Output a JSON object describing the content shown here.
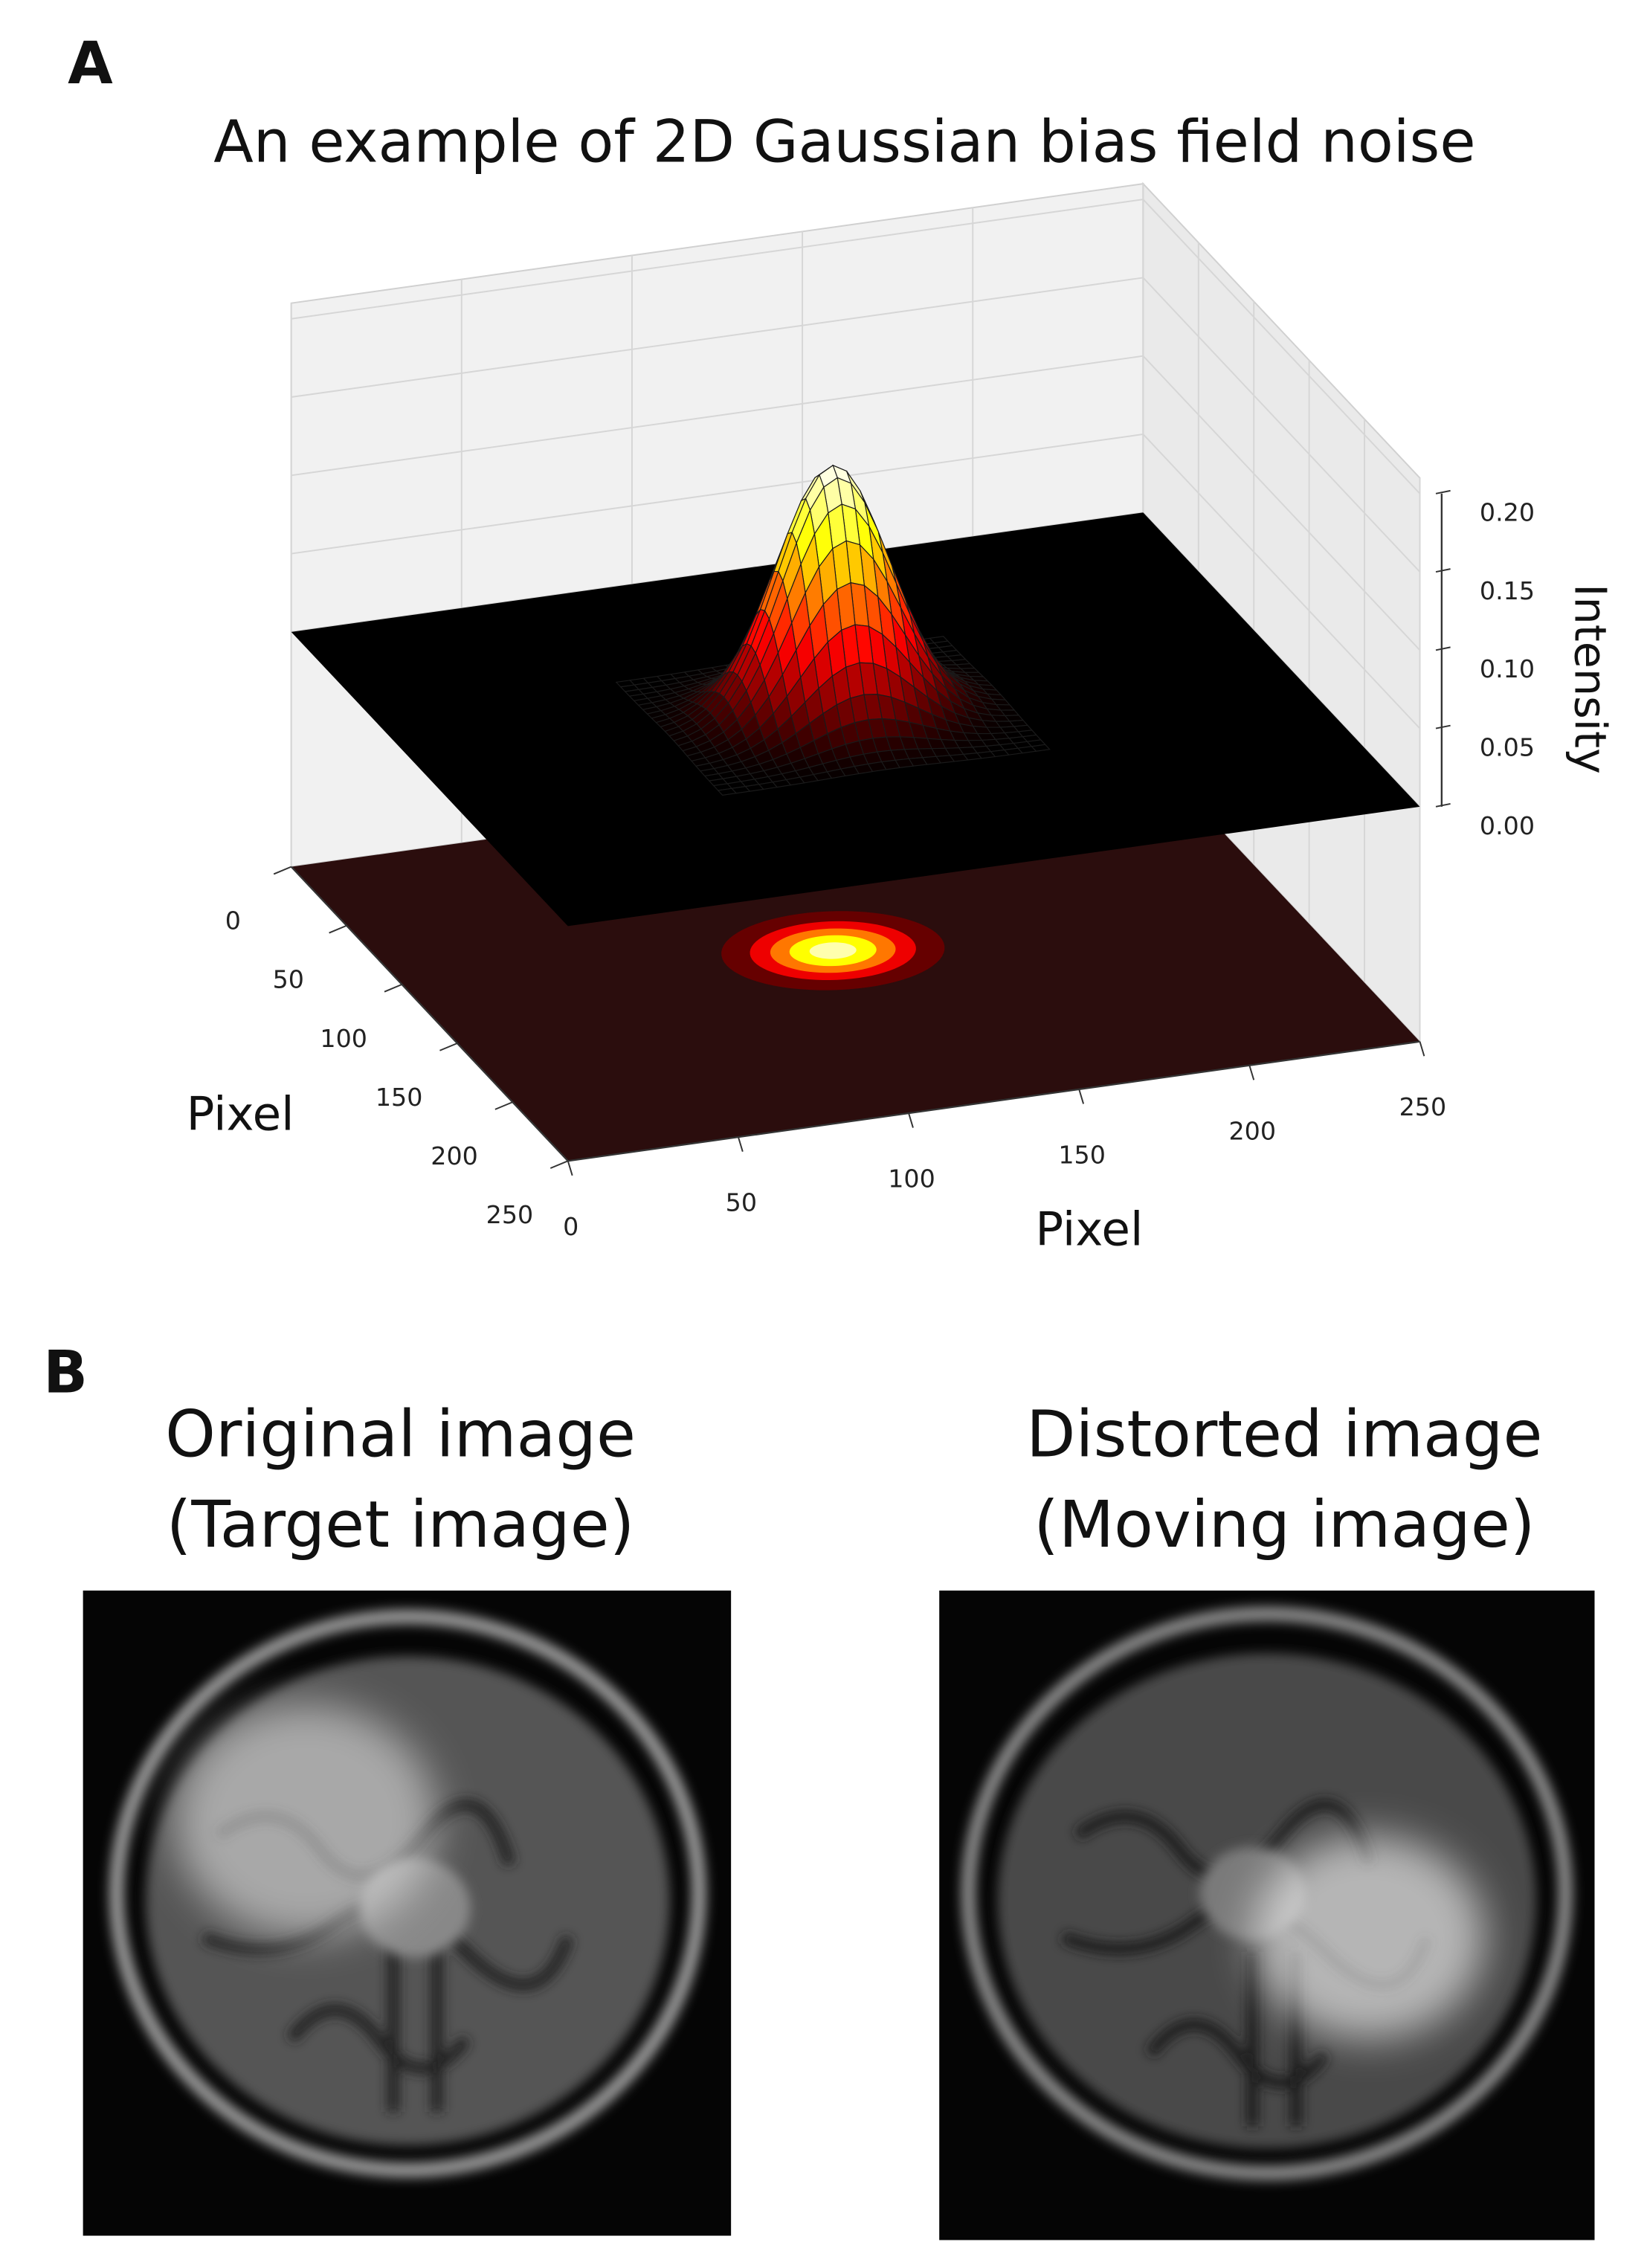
{
  "panel_a": {
    "label": "A"
  },
  "chart_data": {
    "type": "surface3d",
    "title": "An example of 2D Gaussian bias field noise",
    "xlabel": "Pixel",
    "ylabel": "Pixel",
    "zlabel": "Intensity",
    "xlim": [
      0,
      250
    ],
    "ylim": [
      0,
      250
    ],
    "zlim": [
      -0.15,
      0.21
    ],
    "xticks": [
      0,
      50,
      100,
      150,
      200,
      250
    ],
    "yticks": [
      0,
      50,
      100,
      150,
      200,
      250
    ],
    "zticks": [
      {
        "value": 0,
        "label": "0.00"
      },
      0.05,
      {
        "value": 0.1,
        "label": "0.10"
      },
      0.15,
      {
        "value": 0.2,
        "label": "0.20"
      }
    ],
    "center": [
      120,
      120
    ],
    "sigma": 16,
    "peak": 0.16,
    "colormap": "hot",
    "grid": true
  },
  "panel_b": {
    "label": "B",
    "images": [
      {
        "title": [
          "Original image",
          "(Target image)"
        ]
      },
      {
        "title": [
          "Distorted image",
          "(Moving image)"
        ]
      }
    ]
  }
}
